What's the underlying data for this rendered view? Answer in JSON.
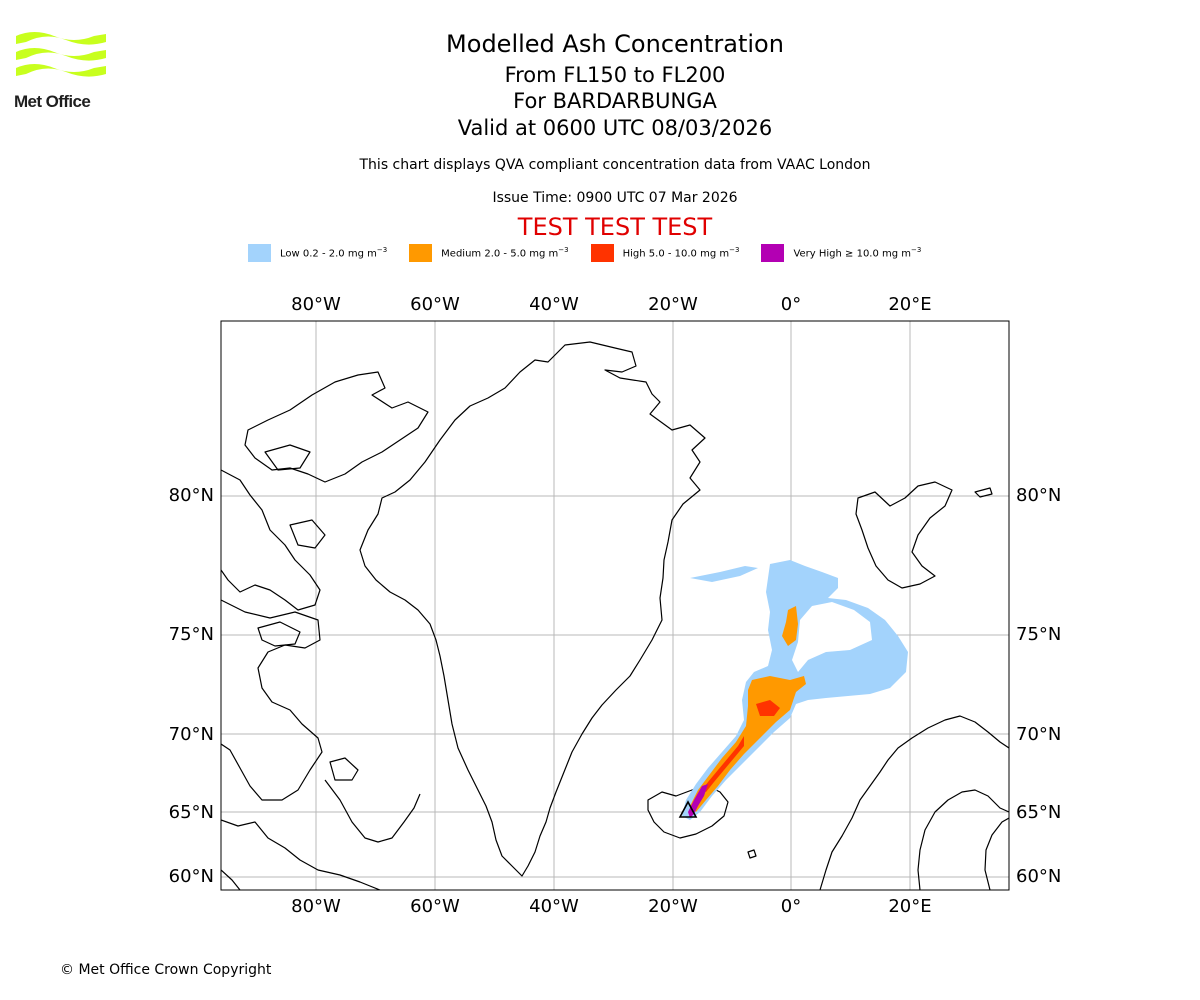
{
  "header": {
    "logo_text": "Met Office",
    "title": "Modelled Ash Concentration",
    "level": "From FL150 to FL200",
    "volcano": "For BARDARBUNGA",
    "valid": "Valid at 0600 UTC 08/03/2026",
    "description": "This chart displays QVA compliant concentration data from VAAC London",
    "issue": "Issue Time: 0900 UTC 07 Mar 2026",
    "test": "TEST TEST TEST"
  },
  "legend": [
    {
      "label": "Low 0.2 - 2.0 mg m",
      "color": "#a3d3fc"
    },
    {
      "label": "Medium 2.0 - 5.0 mg m",
      "color": "#ff9900"
    },
    {
      "label": "High 5.0 - 10.0 mg m",
      "color": "#ff3300"
    },
    {
      "label": "Very High ≥ 10.0 mg m",
      "color": "#b300b3"
    }
  ],
  "legend_unit_exp": "−3",
  "axes": {
    "lon_top": [
      "80°W",
      "60°W",
      "40°W",
      "20°W",
      "0°",
      "20°E"
    ],
    "lon_bottom": [
      "80°W",
      "60°W",
      "40°W",
      "20°W",
      "0°",
      "20°E"
    ],
    "lat_left": [
      "80°N",
      "75°N",
      "70°N",
      "65°N",
      "60°N"
    ],
    "lat_right": [
      "80°N",
      "75°N",
      "70°N",
      "65°N",
      "60°N"
    ]
  },
  "footer": {
    "copyright": "© Met Office Crown Copyright"
  }
}
